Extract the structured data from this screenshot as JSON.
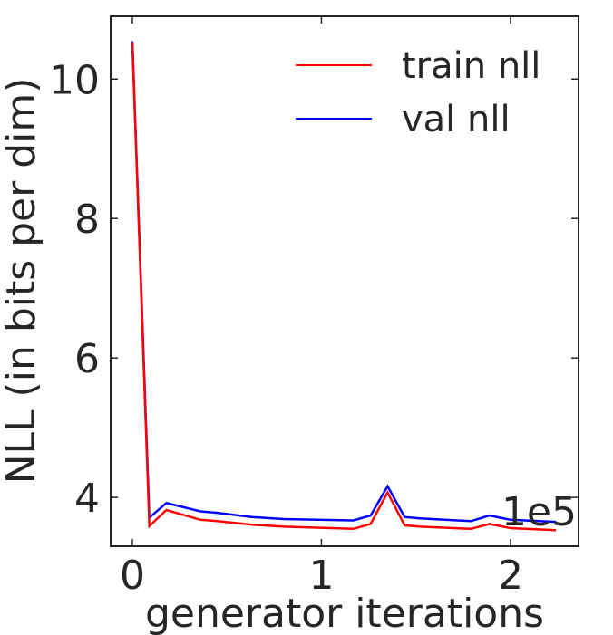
{
  "chart_data": {
    "type": "line",
    "title": "",
    "xlabel": "generator iterations",
    "ylabel": "NLL (in bits per dim)",
    "x_offset_label": "1e5",
    "xlim": [
      -0.115,
      2.36
    ],
    "ylim": [
      3.3,
      10.9
    ],
    "xticks": [
      0,
      1,
      2
    ],
    "xtick_labels": [
      "0",
      "1",
      "2"
    ],
    "yticks": [
      4,
      6,
      8,
      10
    ],
    "ytick_labels": [
      "4",
      "6",
      "8",
      "10"
    ],
    "grid": false,
    "legend_position": "upper right",
    "x": [
      0.0,
      0.09,
      0.18,
      0.36,
      0.45,
      0.63,
      0.8,
      1.17,
      1.26,
      1.35,
      1.44,
      1.52,
      1.79,
      1.89,
      2.0,
      2.24
    ],
    "series": [
      {
        "name": "train nll",
        "color": "#ff0000",
        "values": [
          10.52,
          3.59,
          3.82,
          3.68,
          3.66,
          3.61,
          3.58,
          3.55,
          3.62,
          4.07,
          3.6,
          3.58,
          3.55,
          3.62,
          3.56,
          3.53
        ]
      },
      {
        "name": "val nll",
        "color": "#0000ff",
        "values": [
          10.54,
          3.71,
          3.92,
          3.8,
          3.78,
          3.72,
          3.69,
          3.67,
          3.74,
          4.16,
          3.72,
          3.7,
          3.66,
          3.74,
          3.68,
          3.65
        ]
      }
    ]
  },
  "legend": {
    "items": [
      {
        "label": "train nll",
        "color": "#ff0000"
      },
      {
        "label": "val nll",
        "color": "#0000ff"
      }
    ]
  }
}
